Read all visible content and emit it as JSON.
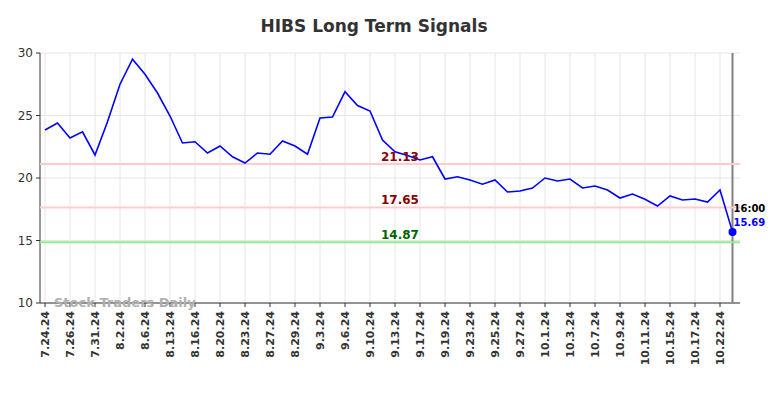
{
  "chart_data": {
    "type": "line",
    "title": "HIBS Long Term Signals",
    "categories": [
      "7.24.24",
      null,
      "7.26.24",
      null,
      "7.31.24",
      null,
      "8.2.24",
      null,
      "8.6.24",
      null,
      "8.13.24",
      null,
      "8.16.24",
      null,
      "8.20.24",
      null,
      "8.23.24",
      null,
      "8.27.24",
      null,
      "8.29.24",
      null,
      "9.3.24",
      null,
      "9.6.24",
      null,
      "9.10.24",
      null,
      "9.13.24",
      null,
      "9.17.24",
      null,
      "9.19.24",
      null,
      "9.23.24",
      null,
      "9.25.24",
      null,
      "9.27.24",
      null,
      "10.1.24",
      null,
      "10.3.24",
      null,
      "10.7.24",
      null,
      "10.9.24",
      null,
      "10.11.24",
      null,
      "10.15.24",
      null,
      "10.17.24",
      null,
      "10.22.24",
      null
    ],
    "values": [
      23.84,
      24.4,
      23.2,
      23.7,
      21.84,
      24.5,
      27.5,
      29.5,
      28.3,
      26.8,
      24.96,
      22.8,
      22.9,
      22.0,
      22.56,
      21.7,
      21.2,
      22.0,
      21.9,
      22.96,
      22.56,
      21.9,
      24.8,
      24.88,
      26.9,
      25.8,
      25.36,
      23.04,
      22.1,
      21.8,
      21.44,
      21.7,
      19.92,
      20.1,
      19.84,
      19.5,
      19.84,
      18.88,
      18.96,
      19.2,
      20.0,
      19.76,
      19.92,
      19.2,
      19.36,
      19.04,
      18.4,
      18.72,
      18.3,
      17.76,
      18.56,
      18.24,
      18.32,
      18.08,
      19.04,
      15.69
    ],
    "color": "#0000ff",
    "ylim": [
      10,
      30
    ],
    "yticks": [
      10,
      15,
      20,
      25,
      30
    ],
    "grid": true,
    "reference_lines": [
      {
        "value": 21.13,
        "color": "#ffcccc",
        "label_color": "#8b0000"
      },
      {
        "value": 17.65,
        "color": "#ffcccc",
        "label_color": "#8b0000"
      },
      {
        "value": 14.87,
        "color": "#90ee90",
        "label_color": "#006400"
      }
    ],
    "last_point_label": "16:00",
    "watermark": "Stock Traders Daily"
  }
}
